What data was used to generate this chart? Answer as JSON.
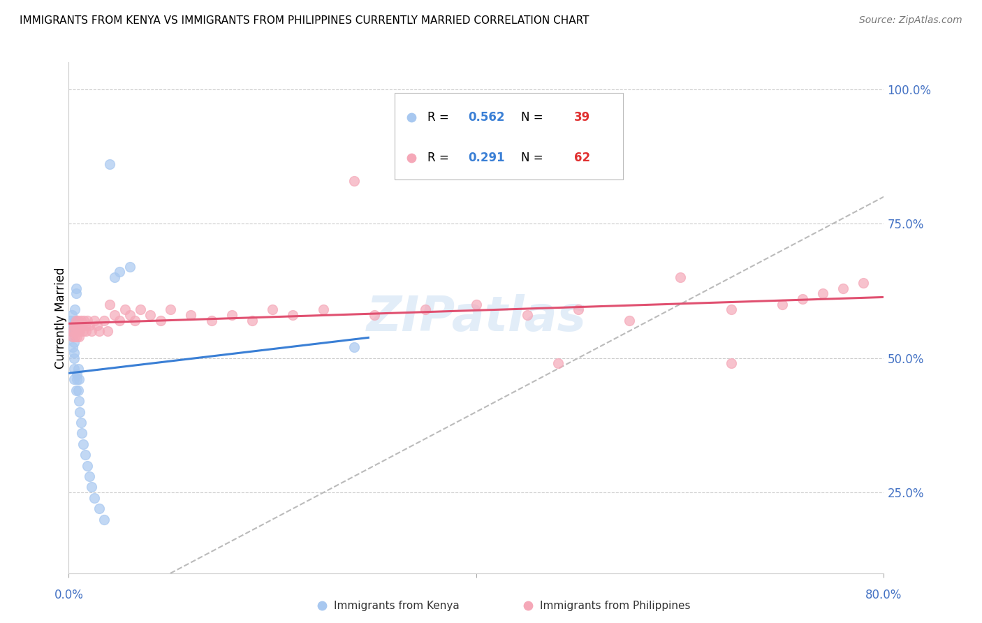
{
  "title": "IMMIGRANTS FROM KENYA VS IMMIGRANTS FROM PHILIPPINES CURRENTLY MARRIED CORRELATION CHART",
  "source": "Source: ZipAtlas.com",
  "ylabel": "Currently Married",
  "ytick_labels": [
    "100.0%",
    "75.0%",
    "50.0%",
    "25.0%"
  ],
  "ytick_values": [
    1.0,
    0.75,
    0.5,
    0.25
  ],
  "xlim": [
    0.0,
    0.8
  ],
  "ylim": [
    0.1,
    1.05
  ],
  "kenya_color": "#a8c8f0",
  "philippines_color": "#f5a8b8",
  "kenya_R": 0.562,
  "kenya_N": 39,
  "philippines_R": 0.291,
  "philippines_N": 62,
  "kenya_line_color": "#3a7fd5",
  "philippines_line_color": "#e05070",
  "diagonal_line_color": "#bbbbbb",
  "kenya_x": [
    0.002,
    0.003,
    0.003,
    0.004,
    0.004,
    0.004,
    0.005,
    0.005,
    0.005,
    0.005,
    0.005,
    0.006,
    0.006,
    0.006,
    0.007,
    0.007,
    0.007,
    0.008,
    0.008,
    0.009,
    0.009,
    0.01,
    0.01,
    0.011,
    0.012,
    0.013,
    0.014,
    0.016,
    0.018,
    0.02,
    0.022,
    0.025,
    0.03,
    0.035,
    0.04,
    0.045,
    0.05,
    0.06,
    0.28
  ],
  "kenya_y": [
    0.57,
    0.55,
    0.58,
    0.52,
    0.54,
    0.56,
    0.48,
    0.5,
    0.51,
    0.53,
    0.46,
    0.55,
    0.57,
    0.59,
    0.63,
    0.62,
    0.44,
    0.46,
    0.47,
    0.48,
    0.44,
    0.46,
    0.42,
    0.4,
    0.38,
    0.36,
    0.34,
    0.32,
    0.3,
    0.28,
    0.26,
    0.24,
    0.22,
    0.2,
    0.86,
    0.65,
    0.66,
    0.67,
    0.52
  ],
  "philippines_x": [
    0.003,
    0.004,
    0.005,
    0.005,
    0.006,
    0.006,
    0.007,
    0.007,
    0.008,
    0.008,
    0.009,
    0.009,
    0.01,
    0.01,
    0.011,
    0.012,
    0.013,
    0.014,
    0.015,
    0.016,
    0.017,
    0.018,
    0.02,
    0.022,
    0.025,
    0.028,
    0.03,
    0.035,
    0.038,
    0.04,
    0.045,
    0.05,
    0.055,
    0.06,
    0.065,
    0.07,
    0.08,
    0.09,
    0.1,
    0.12,
    0.14,
    0.16,
    0.18,
    0.2,
    0.22,
    0.25,
    0.28,
    0.3,
    0.35,
    0.4,
    0.45,
    0.5,
    0.55,
    0.6,
    0.65,
    0.7,
    0.72,
    0.74,
    0.76,
    0.78,
    0.65,
    0.48
  ],
  "philippines_y": [
    0.55,
    0.54,
    0.55,
    0.56,
    0.54,
    0.56,
    0.55,
    0.57,
    0.54,
    0.56,
    0.55,
    0.57,
    0.54,
    0.56,
    0.55,
    0.57,
    0.56,
    0.55,
    0.57,
    0.56,
    0.55,
    0.57,
    0.56,
    0.55,
    0.57,
    0.56,
    0.55,
    0.57,
    0.55,
    0.6,
    0.58,
    0.57,
    0.59,
    0.58,
    0.57,
    0.59,
    0.58,
    0.57,
    0.59,
    0.58,
    0.57,
    0.58,
    0.57,
    0.59,
    0.58,
    0.59,
    0.83,
    0.58,
    0.59,
    0.6,
    0.58,
    0.59,
    0.57,
    0.65,
    0.59,
    0.6,
    0.61,
    0.62,
    0.63,
    0.64,
    0.49,
    0.49
  ]
}
